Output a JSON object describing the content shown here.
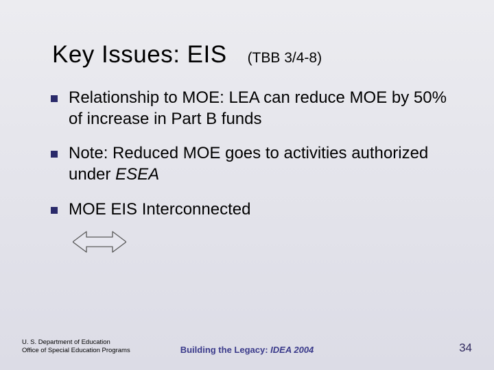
{
  "title": {
    "main": "Key Issues: EIS",
    "sub": "(TBB 3/4-8)",
    "main_fontsize": 35,
    "sub_fontsize": 21,
    "color": "#000000"
  },
  "bullets": {
    "items": [
      {
        "text": "Relationship to MOE: LEA can reduce MOE by 50% of increase in Part B funds"
      },
      {
        "html": "Note: Reduced MOE goes to activities authorized under <span class=\"em\">ESEA</span>"
      },
      {
        "text": "MOE EIS Interconnected"
      }
    ],
    "fontsize": 24,
    "marker_color": "#2a2a6a",
    "marker_size": 10
  },
  "arrow": {
    "width": 78,
    "height": 34,
    "stroke": "#5a5a5a",
    "fill": "#e6e6ee",
    "stroke_width": 1.3
  },
  "footer": {
    "left_line1": "U. S. Department of Education",
    "left_line2": "Office of Special Education Programs",
    "left_fontsize": 9.5,
    "center_prefix": "Building the Legacy: ",
    "center_italic": "IDEA 2004",
    "center_fontsize": 13,
    "center_color": "#3a3a8a",
    "page_number": "34",
    "page_fontsize": 17,
    "page_color": "#322b60"
  },
  "background": {
    "gradient_top": "#ececf0",
    "gradient_bottom": "#dcdce6"
  }
}
